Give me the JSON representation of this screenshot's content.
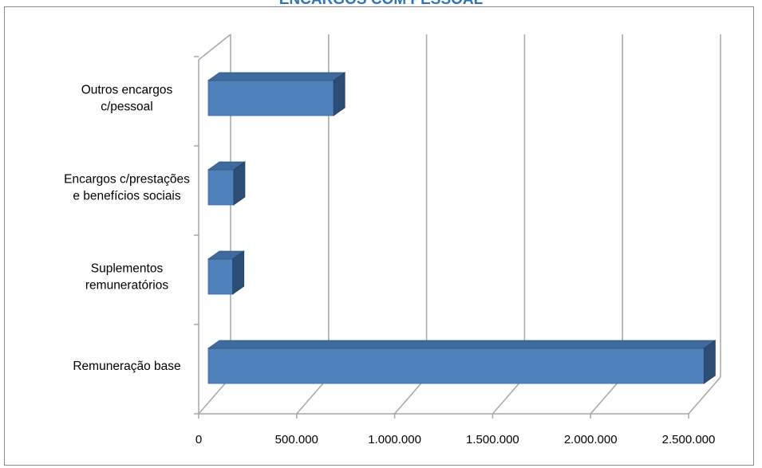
{
  "chart_data": {
    "type": "bar",
    "orientation": "horizontal",
    "style": "3d",
    "title": "ENCARGOS COM PESSOAL",
    "categories": [
      "Remuneração base",
      "Suplementos remuneratórios",
      "Encargos c/prestações e benefícios sociais",
      "Outros encargos c/pessoal"
    ],
    "category_label_lines": [
      [
        "Remuneração base"
      ],
      [
        "Suplementos",
        "remuneratórios"
      ],
      [
        "Encargos c/prestações",
        "e benefícios sociais"
      ],
      [
        "Outros encargos",
        "c/pessoal"
      ]
    ],
    "values": [
      2530000,
      125000,
      130000,
      640000
    ],
    "xlim": [
      0,
      2500000
    ],
    "x_ticks": [
      0,
      500000,
      1000000,
      1500000,
      2000000,
      2500000
    ],
    "x_tick_labels": [
      "0",
      "500.000",
      "1.000.000",
      "1.500.000",
      "2.000.000",
      "2.500.000"
    ],
    "xlabel": "",
    "ylabel": "",
    "grid": "vertical",
    "legend": "none",
    "colors": {
      "bar_front": "#4f81bd",
      "bar_top": "#3f6a9e",
      "bar_side": "#2c4d75",
      "grid": "#a6a6a6",
      "title": "#2e75b6"
    }
  }
}
